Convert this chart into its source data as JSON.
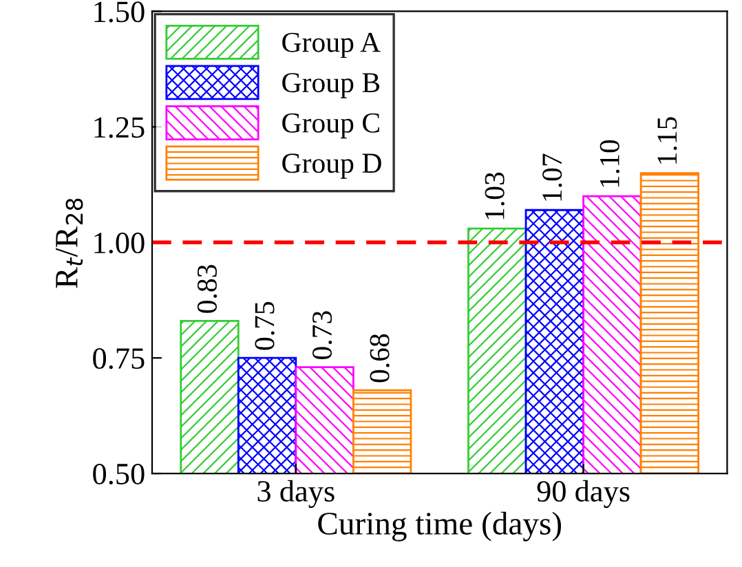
{
  "chart_data": {
    "type": "bar",
    "xlabel": "Curing time (days)",
    "ylabel": "R$_{t}$/R$_{28}$",
    "categories": [
      "3 days",
      "90 days"
    ],
    "series": [
      {
        "name": "Group A",
        "color": "#33cc33",
        "values": [
          0.83,
          1.03
        ],
        "value_labels": [
          "0.83",
          "1.03"
        ]
      },
      {
        "name": "Group B",
        "color": "#0000ff",
        "values": [
          0.75,
          1.07
        ],
        "value_labels": [
          "0.75",
          "1.07"
        ]
      },
      {
        "name": "Group C",
        "color": "#ff00ff",
        "values": [
          0.73,
          1.1
        ],
        "value_labels": [
          "0.73",
          "1.10"
        ]
      },
      {
        "name": "Group D",
        "color": "#ff8000",
        "values": [
          0.68,
          1.15
        ],
        "value_labels": [
          "0.68",
          "1.15"
        ]
      }
    ],
    "ylim": [
      0.5,
      1.5
    ],
    "yticks": [
      {
        "value": 0.5,
        "label": "0.50"
      },
      {
        "value": 0.75,
        "label": "0.75"
      },
      {
        "value": 1.0,
        "label": "1.00"
      },
      {
        "value": 1.25,
        "label": "1.25"
      },
      {
        "value": 1.5,
        "label": "1.50"
      }
    ],
    "ref_lines": [
      {
        "axis": "y",
        "value": 1.0,
        "color": "#ff0000",
        "line_style": "dashed"
      }
    ],
    "legend": "top left",
    "grid": false
  }
}
